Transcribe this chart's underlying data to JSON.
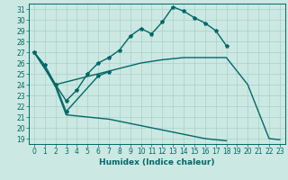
{
  "bg_color": "#cce8e2",
  "grid_color": "#a8d0ca",
  "line_color": "#006868",
  "xlabel": "Humidex (Indice chaleur)",
  "xlim": [
    -0.5,
    23.5
  ],
  "ylim": [
    18.5,
    31.5
  ],
  "line1_x": [
    0,
    1,
    2,
    3,
    4,
    5,
    6,
    7,
    8,
    9,
    10,
    11,
    12,
    13,
    14,
    15,
    16,
    17,
    18
  ],
  "line1_y": [
    27.0,
    25.8,
    24.0,
    22.5,
    23.5,
    25.0,
    26.0,
    26.5,
    27.2,
    28.5,
    29.2,
    28.7,
    29.8,
    31.2,
    30.8,
    30.2,
    29.7,
    29.0,
    27.6
  ],
  "line2_x": [
    0,
    2,
    3,
    6,
    7
  ],
  "line2_y": [
    27.0,
    24.0,
    21.5,
    24.8,
    25.2
  ],
  "line3_x": [
    0,
    1,
    2,
    3,
    4,
    5,
    6,
    7,
    8,
    9,
    10,
    11,
    12,
    13,
    14,
    15,
    16,
    17,
    18
  ],
  "line3_y": [
    27.0,
    25.5,
    23.8,
    21.2,
    21.1,
    21.0,
    20.9,
    20.8,
    20.6,
    20.4,
    20.2,
    20.0,
    19.8,
    19.6,
    19.4,
    19.2,
    19.0,
    18.9,
    18.8
  ],
  "line4_x": [
    0,
    2,
    4,
    6,
    8,
    10,
    12,
    14,
    16,
    18,
    20,
    21,
    22,
    23
  ],
  "line4_y": [
    27.0,
    24.0,
    24.5,
    25.0,
    25.5,
    26.0,
    26.3,
    26.5,
    26.5,
    26.5,
    24.0,
    21.5,
    19.0,
    18.9
  ],
  "lw": 1.0,
  "ms": 3.0,
  "tick_fontsize": 5.5,
  "xlabel_fontsize": 6.5
}
